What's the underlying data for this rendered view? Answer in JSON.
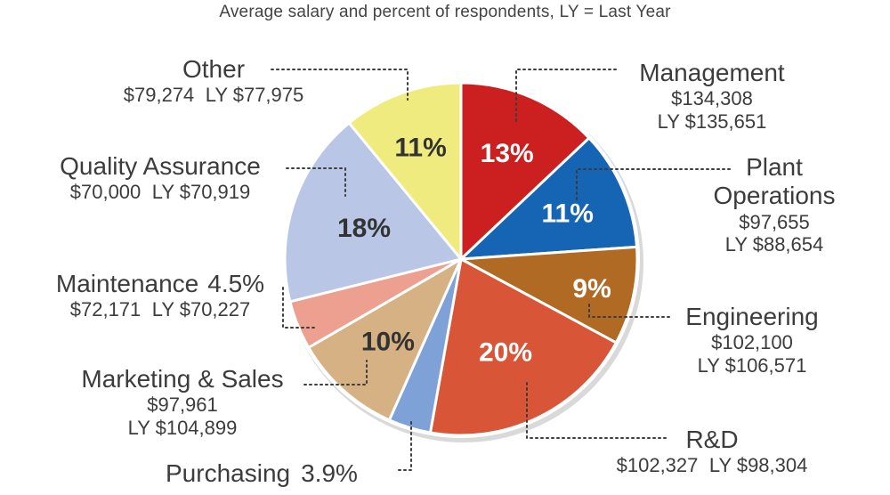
{
  "chart_data": {
    "type": "pie",
    "title": "Average salary and percent of respondents, LY = Last Year",
    "slices": [
      {
        "name": "Management",
        "percent": 13,
        "pct_label": "13%",
        "salary": "$134,308",
        "last_year": "LY $135,651",
        "color": "#cc1f1f"
      },
      {
        "name": "Plant Operations",
        "name_lines": [
          "Plant",
          "Operations"
        ],
        "percent": 11,
        "pct_label": "11%",
        "salary": "$97,655",
        "last_year": "LY $88,654",
        "color": "#1565b4"
      },
      {
        "name": "Engineering",
        "percent": 9,
        "pct_label": "9%",
        "salary": "$102,100",
        "last_year": "LY $106,571",
        "color": "#b06a24"
      },
      {
        "name": "R&D",
        "percent": 20,
        "pct_label": "20%",
        "salary": "$102,327",
        "last_year": "LY $98,304",
        "color": "#d85537"
      },
      {
        "name": "Purchasing",
        "percent": 3.9,
        "pct_label": "3.9%",
        "salary": "",
        "last_year": "",
        "color": "#7ea2d8"
      },
      {
        "name": "Marketing & Sales",
        "percent": 10,
        "pct_label": "10%",
        "salary": "$97,961",
        "last_year": "LY $104,899",
        "color": "#d6b183"
      },
      {
        "name": "Maintenance",
        "percent": 4.5,
        "pct_label": "4.5%",
        "salary": "$72,171",
        "last_year": "LY $70,227",
        "color": "#eda090"
      },
      {
        "name": "Quality Assurance",
        "percent": 18,
        "pct_label": "18%",
        "salary": "$70,000",
        "last_year": "LY $70,919",
        "color": "#b9c6e6"
      },
      {
        "name": "Other",
        "percent": 11,
        "pct_label": "11%",
        "salary": "$79,274",
        "last_year": "LY $77,975",
        "color": "#efeb7e"
      }
    ]
  }
}
